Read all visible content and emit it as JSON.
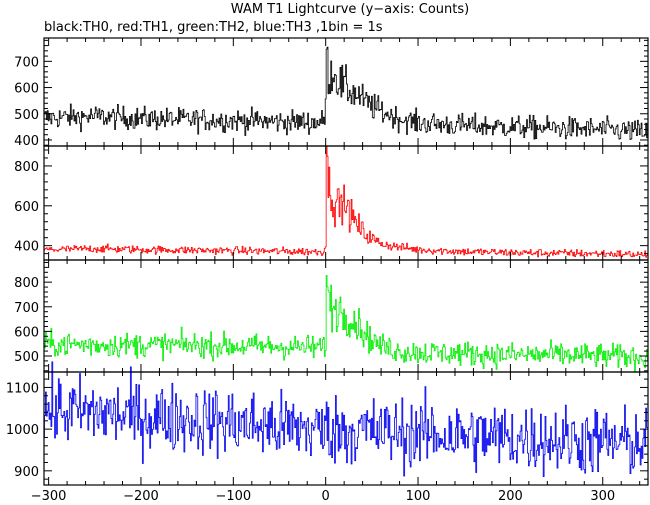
{
  "chart_data": {
    "type": "line",
    "title": "WAM T1 Lightcurve (y−axis: Counts)",
    "subtitle": "black:TH0, red:TH1, green:TH2, blue:TH3 ,1bin = 1s",
    "xlabel": "",
    "ylabel": "",
    "xlim": [
      -305,
      349
    ],
    "x_ticks": [
      -300,
      -200,
      -100,
      0,
      100,
      200,
      300
    ],
    "x_tick_labels": [
      "−300",
      "−200",
      "−100",
      "0",
      "100",
      "200",
      "300"
    ],
    "grid": false,
    "legend": "none",
    "panels": [
      {
        "name": "TH0",
        "color": "#000000",
        "ylim": [
          377,
          789
        ],
        "y_ticks": [
          400,
          500,
          600,
          700
        ],
        "y_tick_labels": [
          "400",
          "500",
          "600",
          "700"
        ],
        "series": {
          "x": [
            -300,
            -250,
            -200,
            -150,
            -100,
            -50,
            -10,
            -2,
            0,
            1,
            3,
            8,
            15,
            25,
            35,
            45,
            60,
            80,
            100,
            150,
            200,
            250,
            300,
            349
          ],
          "mean": [
            485,
            490,
            482,
            478,
            475,
            470,
            468,
            470,
            520,
            760,
            640,
            660,
            620,
            590,
            570,
            540,
            510,
            480,
            465,
            455,
            450,
            445,
            440,
            430
          ],
          "noise": [
            22,
            22,
            22,
            22,
            22,
            22,
            22,
            22,
            30,
            30,
            40,
            40,
            40,
            35,
            30,
            28,
            25,
            22,
            22,
            22,
            22,
            22,
            22,
            22
          ]
        }
      },
      {
        "name": "TH1",
        "color": "#ff0000",
        "ylim": [
          328,
          900
        ],
        "y_ticks": [
          400,
          600,
          800
        ],
        "y_tick_labels": [
          "400",
          "600",
          "800"
        ],
        "series": {
          "x": [
            -300,
            -250,
            -200,
            -100,
            -50,
            -10,
            -2,
            0,
            1,
            3,
            8,
            15,
            20,
            30,
            40,
            55,
            70,
            100,
            150,
            200,
            300,
            349
          ],
          "mean": [
            380,
            385,
            380,
            375,
            372,
            370,
            370,
            420,
            890,
            720,
            640,
            600,
            620,
            530,
            470,
            420,
            400,
            380,
            370,
            365,
            360,
            355
          ],
          "noise": [
            10,
            10,
            10,
            10,
            10,
            10,
            10,
            20,
            20,
            50,
            60,
            50,
            40,
            40,
            30,
            15,
            12,
            10,
            10,
            10,
            10,
            10
          ]
        }
      },
      {
        "name": "TH2",
        "color": "#00ee00",
        "ylim": [
          435,
          890
        ],
        "y_ticks": [
          500,
          600,
          700,
          800
        ],
        "y_tick_labels": [
          "500",
          "600",
          "700",
          "800"
        ],
        "series": {
          "x": [
            -300,
            -250,
            -200,
            -150,
            -100,
            -50,
            -10,
            -2,
            0,
            1,
            3,
            8,
            15,
            25,
            35,
            45,
            60,
            80,
            100,
            150,
            200,
            250,
            300,
            349
          ],
          "mean": [
            548,
            545,
            545,
            545,
            540,
            538,
            535,
            535,
            560,
            840,
            720,
            700,
            690,
            660,
            630,
            580,
            540,
            520,
            515,
            510,
            505,
            505,
            500,
            495
          ],
          "noise": [
            25,
            25,
            25,
            25,
            25,
            25,
            25,
            25,
            30,
            30,
            50,
            50,
            45,
            40,
            35,
            30,
            25,
            25,
            25,
            25,
            25,
            25,
            25,
            25
          ]
        }
      },
      {
        "name": "TH3",
        "color": "#0000ee",
        "ylim": [
          866,
          1137
        ],
        "y_ticks": [
          900,
          1000,
          1100
        ],
        "y_tick_labels": [
          "900",
          "1000",
          "1100"
        ],
        "series": {
          "x": [
            -300,
            -250,
            -200,
            -150,
            -100,
            -50,
            0,
            50,
            100,
            150,
            200,
            250,
            300,
            349
          ],
          "mean": [
            1045,
            1040,
            1030,
            1025,
            1015,
            1005,
            1000,
            995,
            990,
            985,
            980,
            975,
            970,
            965
          ],
          "noise": [
            42,
            42,
            42,
            42,
            42,
            42,
            42,
            42,
            42,
            42,
            42,
            42,
            42,
            42
          ]
        }
      }
    ]
  }
}
